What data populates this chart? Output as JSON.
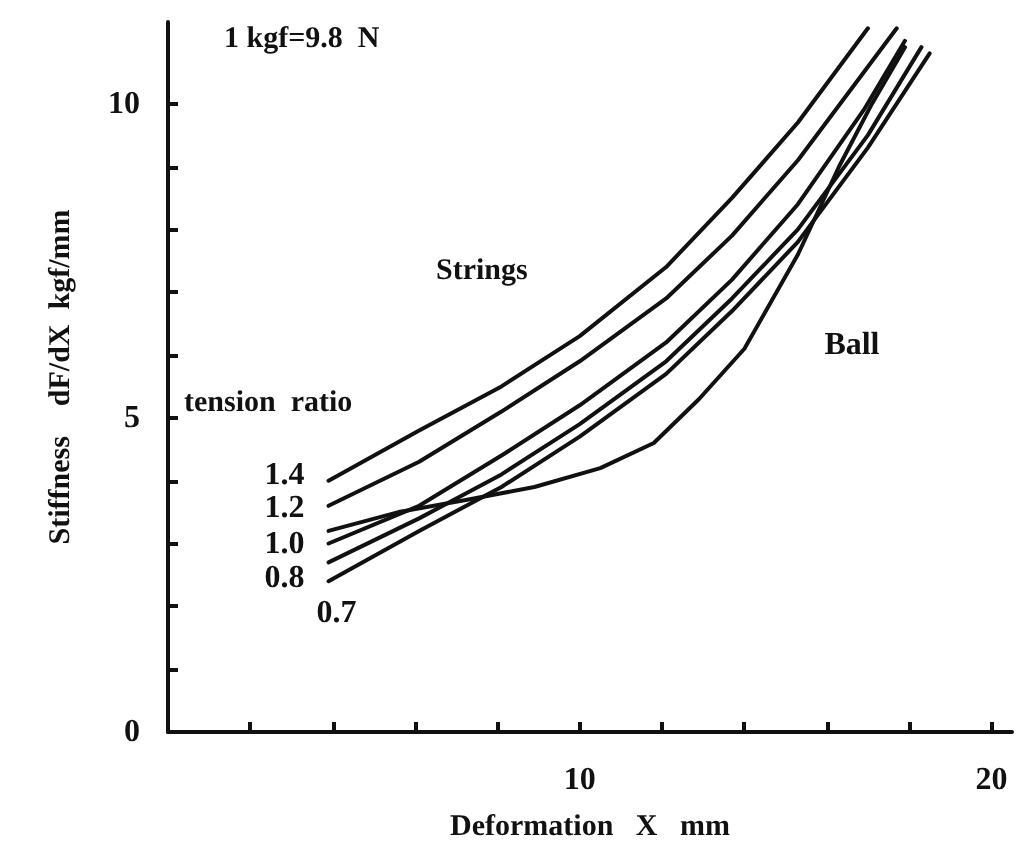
{
  "chart_data": {
    "type": "line",
    "xlabel": "Deformation   X   mm",
    "ylabel": "Stiffness    dF/dX  kgf/mm",
    "legend_title": "tension  ratio",
    "annotations": [
      "1 kgf=9.8  N",
      "Strings"
    ],
    "xlim": [
      0,
      20.5
    ],
    "xticks": [
      {
        "value": 2,
        "label": null
      },
      {
        "value": 4,
        "label": null
      },
      {
        "value": 6,
        "label": null
      },
      {
        "value": 8,
        "label": null
      },
      10,
      {
        "value": 12,
        "label": null
      },
      {
        "value": 14,
        "label": null
      },
      {
        "value": 16,
        "label": null
      },
      {
        "value": 18,
        "label": null
      },
      20
    ],
    "ylim": [
      0,
      11.3
    ],
    "yticks": [
      0,
      {
        "value": 1,
        "label": null
      },
      {
        "value": 2,
        "label": null
      },
      {
        "value": 3,
        "label": null
      },
      {
        "value": 4,
        "label": null
      },
      5,
      {
        "value": 6,
        "label": null
      },
      {
        "value": 7,
        "label": null
      },
      {
        "value": 8,
        "label": null
      },
      {
        "value": 9,
        "label": null
      },
      10
    ],
    "grid": false,
    "legend": false,
    "marker": "none",
    "line_style": "solid",
    "series": [
      {
        "name": "1.4",
        "color": "#111111",
        "x": [
          3.9,
          6.1,
          8.1,
          10,
          12.1,
          13.7,
          15.3,
          17
        ],
        "values": [
          4.0,
          4.8,
          5.5,
          6.3,
          7.4,
          8.5,
          9.7,
          11.2
        ]
      },
      {
        "name": "1.2",
        "color": "#111111",
        "x": [
          3.9,
          6.1,
          8.1,
          10,
          12.1,
          13.7,
          15.3,
          17.7
        ],
        "values": [
          3.6,
          4.3,
          5.1,
          5.9,
          6.9,
          7.9,
          9.1,
          11.2
        ]
      },
      {
        "name": "1.0",
        "color": "#111111",
        "x": [
          3.9,
          6.1,
          8.1,
          10,
          12.1,
          13.7,
          15.3,
          16.9,
          17.9
        ],
        "values": [
          3.0,
          3.6,
          4.4,
          5.2,
          6.2,
          7.2,
          8.4,
          9.9,
          11.0
        ]
      },
      {
        "name": "0.8",
        "color": "#111111",
        "x": [
          3.9,
          6.1,
          8.1,
          10,
          12.1,
          13.7,
          15.3,
          17,
          18.3
        ],
        "values": [
          2.7,
          3.4,
          4.1,
          4.9,
          5.9,
          6.9,
          8.0,
          9.5,
          10.9
        ]
      },
      {
        "name": "0.7",
        "color": "#111111",
        "x": [
          3.9,
          6.1,
          8.1,
          10,
          12.1,
          13.7,
          15.3,
          17,
          18.5
        ],
        "values": [
          2.4,
          3.2,
          3.9,
          4.7,
          5.7,
          6.7,
          7.8,
          9.3,
          10.8
        ]
      },
      {
        "name": "Ball",
        "color": "#111111",
        "x": [
          3.9,
          5.6,
          7.3,
          8.9,
          10.5,
          11.8,
          12.9,
          14.0,
          15.3,
          16.3,
          17.1,
          17.9
        ],
        "values": [
          3.2,
          3.5,
          3.7,
          3.9,
          4.2,
          4.6,
          5.3,
          6.1,
          7.6,
          9.0,
          10.0,
          10.9
        ]
      }
    ]
  }
}
